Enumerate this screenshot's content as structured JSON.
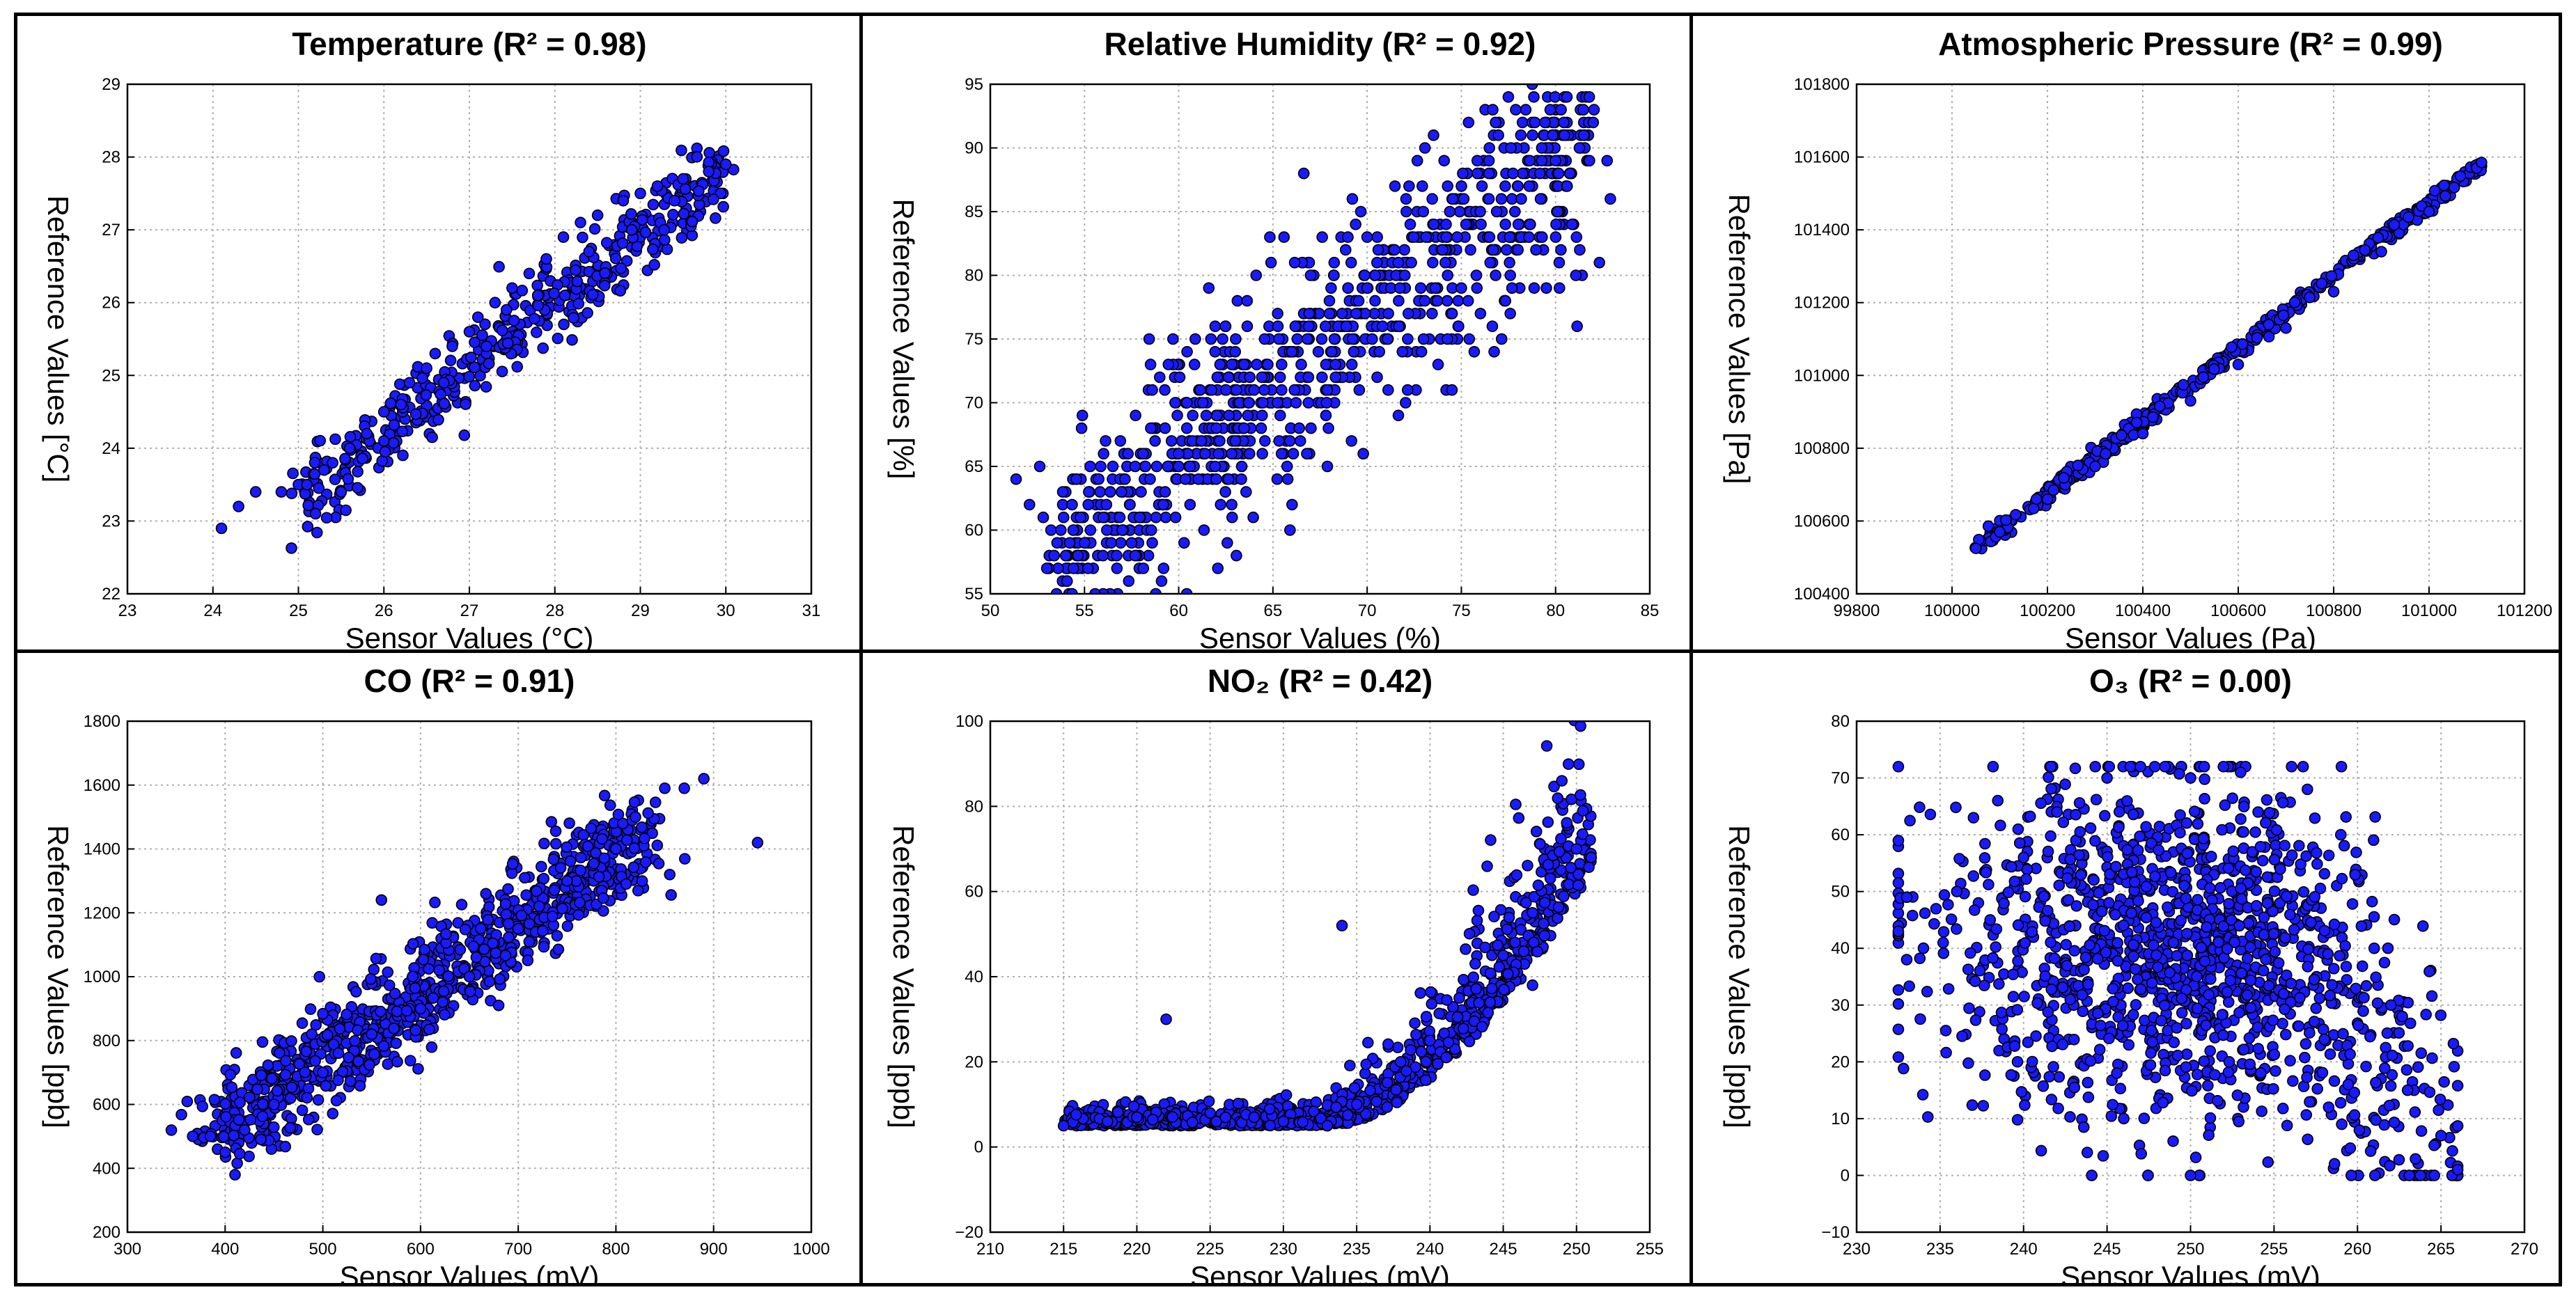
{
  "chart_data": [
    {
      "type": "scatter",
      "title": "Temperature (R² = 0.98)",
      "xlabel": "Sensor Values (°C)",
      "ylabel": "Reference Values [°C]",
      "xlim": [
        23,
        31
      ],
      "ylim": [
        22,
        29
      ],
      "xticks": [
        "23",
        "24",
        "25",
        "26",
        "27",
        "28",
        "29",
        "30",
        "31"
      ],
      "yticks": [
        "22",
        "23",
        "24",
        "25",
        "26",
        "27",
        "28",
        "29"
      ],
      "grid": true,
      "points": [
        [
          24.1,
          22.9
        ],
        [
          24.3,
          23.2
        ],
        [
          24.5,
          23.4
        ],
        [
          24.8,
          23.4
        ],
        [
          25.0,
          23.5
        ],
        [
          25.2,
          23.1
        ],
        [
          25.1,
          23.5
        ],
        [
          25.3,
          23.7
        ],
        [
          25.4,
          23.8
        ],
        [
          25.6,
          24.0
        ],
        [
          25.8,
          24.2
        ],
        [
          26.0,
          24.5
        ],
        [
          26.2,
          24.6
        ],
        [
          26.3,
          24.9
        ],
        [
          26.5,
          25.1
        ],
        [
          26.6,
          25.3
        ],
        [
          26.8,
          25.4
        ],
        [
          27.0,
          25.6
        ],
        [
          27.1,
          25.8
        ],
        [
          27.3,
          26.0
        ],
        [
          27.5,
          26.2
        ],
        [
          27.7,
          26.4
        ],
        [
          27.9,
          26.6
        ],
        [
          28.1,
          26.9
        ],
        [
          28.3,
          27.1
        ],
        [
          28.5,
          27.2
        ],
        [
          28.8,
          27.4
        ],
        [
          29.0,
          27.5
        ],
        [
          29.2,
          27.6
        ],
        [
          29.5,
          27.7
        ],
        [
          29.8,
          27.8
        ],
        [
          30.0,
          27.9
        ],
        [
          29.4,
          27.4
        ],
        [
          28.9,
          27.0
        ],
        [
          28.4,
          26.7
        ],
        [
          27.8,
          26.1
        ],
        [
          27.2,
          25.4
        ],
        [
          26.7,
          24.9
        ],
        [
          26.0,
          24.1
        ],
        [
          25.5,
          23.4
        ]
      ],
      "band": {
        "x0": 25.0,
        "y0": 23.3,
        "x1": 30.0,
        "y1": 27.8,
        "spread": 0.28,
        "count": 420,
        "jitter": 0.25
      }
    },
    {
      "type": "scatter",
      "title": "Relative Humidity (R² = 0.92)",
      "xlabel": "Sensor Values (%)",
      "ylabel": "Reference Values [%]",
      "xlim": [
        50,
        85
      ],
      "ylim": [
        55,
        95
      ],
      "xticks": [
        "50",
        "55",
        "60",
        "65",
        "70",
        "75",
        "80",
        "85"
      ],
      "yticks": [
        "55",
        "60",
        "65",
        "70",
        "75",
        "80",
        "85",
        "90",
        "95"
      ],
      "grid": true,
      "points": [
        [
          53.0,
          57.0
        ],
        [
          54.0,
          58.0
        ],
        [
          55.0,
          59.0
        ],
        [
          56.0,
          61.0
        ],
        [
          58.0,
          63.0
        ],
        [
          60.0,
          65.0
        ],
        [
          62.0,
          68.0
        ],
        [
          64.0,
          71.0
        ],
        [
          66.0,
          74.0
        ],
        [
          68.0,
          77.0
        ],
        [
          70.0,
          79.0
        ],
        [
          72.0,
          80.0
        ],
        [
          74.0,
          82.0
        ],
        [
          76.0,
          85.0
        ],
        [
          78.0,
          87.0
        ],
        [
          80.0,
          89.0
        ],
        [
          81.5,
          91.0
        ],
        [
          82.0,
          92.0
        ],
        [
          63.0,
          74.0
        ],
        [
          67.0,
          80.0
        ],
        [
          70.0,
          83.0
        ],
        [
          60.0,
          66.0
        ],
        [
          57.0,
          60.0
        ],
        [
          75.0,
          79.0
        ]
      ],
      "band": {
        "x0": 53.5,
        "y0": 57.5,
        "x1": 81.5,
        "y1": 90.5,
        "spread": 4.2,
        "count": 900,
        "jitter": 3.0,
        "quantizeY": 1
      }
    },
    {
      "type": "scatter",
      "title": "Atmospheric Pressure (R² = 0.99)",
      "xlabel": "Sensor Values (Pa)",
      "ylabel": "Reference Values [Pa]",
      "xlim": [
        99800,
        101200
      ],
      "ylim": [
        100400,
        101800
      ],
      "xticks": [
        "99800",
        "100000",
        "100200",
        "100400",
        "100600",
        "100800",
        "101000",
        "101200"
      ],
      "yticks": [
        "100400",
        "100600",
        "100800",
        "101000",
        "101200",
        "101400",
        "101600",
        "101800"
      ],
      "grid": true,
      "points": [
        [
          100050,
          100525
        ],
        [
          100100,
          100570
        ],
        [
          100200,
          100660
        ],
        [
          100300,
          100750
        ],
        [
          100400,
          100840
        ],
        [
          100500,
          100930
        ],
        [
          100600,
          101030
        ],
        [
          100700,
          101130
        ],
        [
          100800,
          101230
        ],
        [
          100900,
          101340
        ],
        [
          101000,
          101450
        ],
        [
          101100,
          101570
        ],
        [
          101110,
          101585
        ]
      ],
      "band": {
        "x0": 100050,
        "y0": 100525,
        "x1": 101110,
        "y1": 101585,
        "spread": 12,
        "count": 420,
        "jitter": 10
      }
    },
    {
      "type": "scatter",
      "title": "CO (R² = 0.91)",
      "xlabel": "Sensor Values (mV)",
      "ylabel": "Reference Values [ppb]",
      "xlim": [
        300,
        1000
      ],
      "ylim": [
        200,
        1800
      ],
      "xticks": [
        "300",
        "400",
        "500",
        "600",
        "700",
        "800",
        "900",
        "1000"
      ],
      "yticks": [
        "200",
        "400",
        "600",
        "800",
        "1000",
        "1200",
        "1400",
        "1600",
        "1800"
      ],
      "grid": true,
      "points": [
        [
          385,
          500
        ],
        [
          400,
          450
        ],
        [
          420,
          520
        ],
        [
          450,
          600
        ],
        [
          500,
          700
        ],
        [
          550,
          820
        ],
        [
          560,
          1240
        ],
        [
          600,
          900
        ],
        [
          650,
          1000
        ],
        [
          700,
          1150
        ],
        [
          750,
          1300
        ],
        [
          800,
          1400
        ],
        [
          820,
          1500
        ],
        [
          850,
          1590
        ],
        [
          870,
          1590
        ],
        [
          890,
          1620
        ],
        [
          945,
          1420
        ],
        [
          680,
          910
        ]
      ],
      "band": {
        "x0": 390,
        "y0": 500,
        "x1": 830,
        "y1": 1450,
        "spread": 70,
        "count": 900,
        "jitter": 60
      }
    },
    {
      "type": "scatter",
      "title": "NO₂ (R² = 0.42)",
      "xlabel": "Sensor Values (mV)",
      "ylabel": "Reference Values [ppb]",
      "xlim": [
        210,
        255
      ],
      "ylim": [
        -20,
        100
      ],
      "xticks": [
        "210",
        "215",
        "220",
        "225",
        "230",
        "235",
        "240",
        "245",
        "250",
        "255"
      ],
      "yticks": [
        "−20",
        "0",
        "20",
        "40",
        "60",
        "80",
        "100"
      ],
      "grid": true,
      "points": [
        [
          215,
          5
        ],
        [
          218,
          6
        ],
        [
          220,
          7
        ],
        [
          222,
          30
        ],
        [
          225,
          8
        ],
        [
          228,
          7
        ],
        [
          230,
          6
        ],
        [
          233,
          5
        ],
        [
          235,
          10
        ],
        [
          238,
          20
        ],
        [
          240,
          25
        ],
        [
          242,
          35
        ],
        [
          245,
          45
        ],
        [
          247,
          55
        ],
        [
          249,
          86
        ],
        [
          250,
          70
        ],
        [
          251,
          68
        ],
        [
          234,
          52
        ],
        [
          247,
          38
        ]
      ],
      "curve": {
        "x0": 215,
        "x1": 251,
        "base": 5,
        "top": 65,
        "knee": 233,
        "spread": 4,
        "count": 1100
      }
    },
    {
      "type": "scatter",
      "title": "O₃ (R² = 0.00)",
      "xlabel": "Sensor Values (mV)",
      "ylabel": "Reference Values [ppb]",
      "xlim": [
        230,
        270
      ],
      "ylim": [
        -10,
        80
      ],
      "xticks": [
        "230",
        "235",
        "240",
        "245",
        "250",
        "255",
        "260",
        "265",
        "270"
      ],
      "yticks": [
        "−10",
        "0",
        "10",
        "20",
        "30",
        "40",
        "50",
        "60",
        "70",
        "80"
      ],
      "grid": true,
      "points": [
        [
          233,
          49
        ],
        [
          233,
          38
        ],
        [
          236,
          50
        ],
        [
          237,
          63
        ],
        [
          240,
          56
        ],
        [
          242,
          64
        ],
        [
          245,
          70
        ],
        [
          247,
          72
        ],
        [
          250,
          70
        ],
        [
          253,
          71
        ],
        [
          257,
          68
        ],
        [
          259,
          60
        ],
        [
          261,
          40
        ],
        [
          263,
          15
        ],
        [
          265,
          7
        ],
        [
          266,
          1
        ],
        [
          250,
          0
        ],
        [
          246,
          10
        ],
        [
          262,
          30
        ],
        [
          238,
          45
        ]
      ],
      "blob": {
        "cx": 250,
        "cy": 40,
        "rx": 10,
        "ry": 25,
        "count": 1400,
        "xmin": 232.5,
        "xmax": 266,
        "ymin": 0,
        "ymax": 72
      }
    }
  ]
}
